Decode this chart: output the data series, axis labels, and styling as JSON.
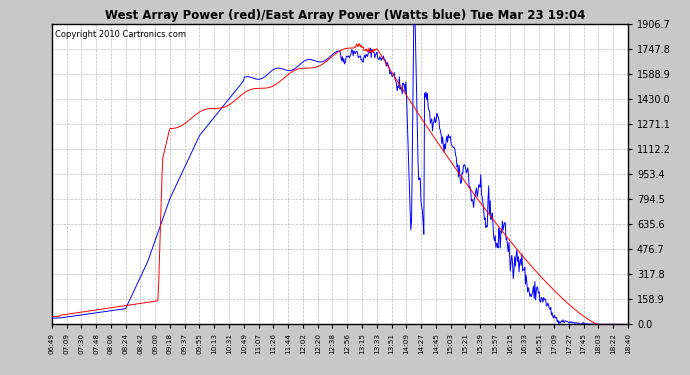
{
  "title": "West Array Power (red)/East Array Power (Watts blue) Tue Mar 23 19:04",
  "copyright": "Copyright 2010 Cartronics.com",
  "y_ticks": [
    0.0,
    158.9,
    317.8,
    476.7,
    635.6,
    794.5,
    953.4,
    1112.2,
    1271.1,
    1430.0,
    1588.9,
    1747.8,
    1906.7
  ],
  "y_max": 1906.7,
  "y_min": 0.0,
  "x_labels": [
    "06:49",
    "07:09",
    "07:30",
    "07:48",
    "08:06",
    "08:24",
    "08:42",
    "09:00",
    "09:18",
    "09:37",
    "09:55",
    "10:13",
    "10:31",
    "10:49",
    "11:07",
    "11:26",
    "11:44",
    "12:02",
    "12:20",
    "12:38",
    "12:56",
    "13:15",
    "13:33",
    "13:51",
    "14:09",
    "14:27",
    "14:45",
    "15:03",
    "15:21",
    "15:39",
    "15:57",
    "16:15",
    "16:33",
    "16:51",
    "17:09",
    "17:27",
    "17:45",
    "18:03",
    "18:22",
    "18:40"
  ],
  "red_color": "#ff0000",
  "blue_color": "#0000ff",
  "grid_color": "#aaaaaa",
  "title_color": "#000000",
  "plot_face_color": "#ffffff",
  "outer_bg": "#c8c8c8",
  "title_bg": "#c8c8c8"
}
